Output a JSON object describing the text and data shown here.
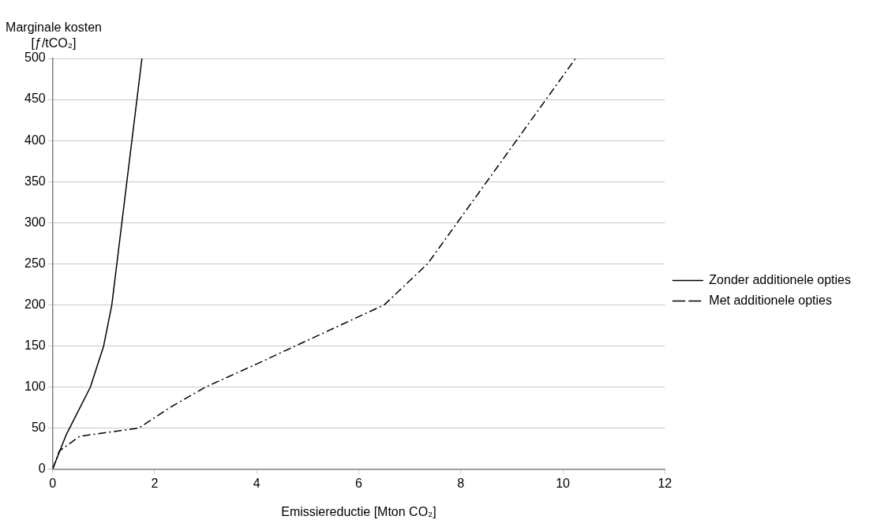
{
  "chart_data": {
    "type": "line",
    "xlabel": "Emissiereductie [Mton CO₂]",
    "ylabel": "Marginale kosten\n[ƒ/tCO₂]",
    "xlim": [
      0,
      12
    ],
    "xticks": [
      0,
      2,
      4,
      6,
      8,
      10,
      12
    ],
    "ylim": [
      0,
      500
    ],
    "yticks": [
      0,
      50,
      100,
      150,
      200,
      250,
      300,
      350,
      400,
      450,
      500
    ],
    "grid": "y",
    "legend": "right",
    "marker": "none",
    "series": [
      {
        "name": "Zonder additionele opties",
        "color": "#000000",
        "line_style": "solid",
        "x": [
          0,
          0.26,
          0.74,
          1.0,
          1.16,
          1.75
        ],
        "values": [
          0,
          41,
          100,
          150,
          200,
          500
        ]
      },
      {
        "name": "Met additionele opties",
        "color": "#000000",
        "line_style": "dashed",
        "x": [
          0,
          0.13,
          0.53,
          1.69,
          2.3,
          3.0,
          4.0,
          4.76,
          6.5,
          7.35,
          10.25
        ],
        "values": [
          0,
          22,
          40,
          50,
          75,
          100,
          128,
          150,
          200,
          250,
          500
        ]
      }
    ]
  }
}
